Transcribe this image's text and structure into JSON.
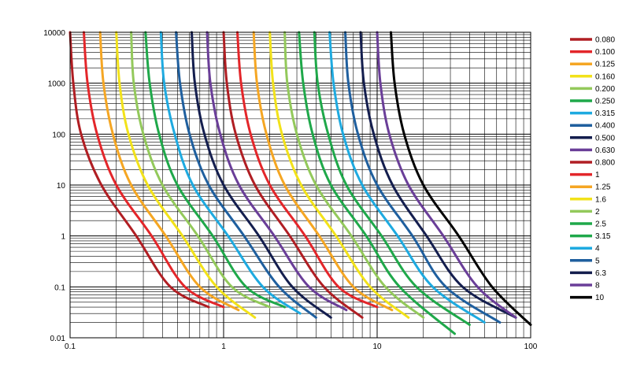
{
  "chart_data": {
    "type": "line",
    "title": "",
    "xlabel": "",
    "ylabel": "",
    "x_scale": "log",
    "y_scale": "log",
    "xlim": [
      0.1,
      100
    ],
    "ylim": [
      0.01,
      10000
    ],
    "grid": true,
    "legend_position": "right",
    "x_ticks": [
      "0.1",
      "1",
      "10",
      "100"
    ],
    "y_ticks": [
      "0.01",
      "0.1",
      "1",
      "10",
      "100",
      "1000",
      "10000"
    ],
    "series": [
      {
        "name": "0.080",
        "color": "#B01E23",
        "points": [
          [
            0.1,
            10000
          ],
          [
            0.105,
            1000
          ],
          [
            0.118,
            100
          ],
          [
            0.16,
            10
          ],
          [
            0.27,
            1
          ],
          [
            0.45,
            0.1
          ],
          [
            0.8,
            0.04
          ]
        ]
      },
      {
        "name": "0.100",
        "color": "#E3262A",
        "points": [
          [
            0.123,
            10000
          ],
          [
            0.13,
            1000
          ],
          [
            0.15,
            100
          ],
          [
            0.2,
            10
          ],
          [
            0.34,
            1
          ],
          [
            0.56,
            0.1
          ],
          [
            1.0,
            0.04
          ]
        ]
      },
      {
        "name": "0.125",
        "color": "#F5A623",
        "points": [
          [
            0.157,
            10000
          ],
          [
            0.165,
            1000
          ],
          [
            0.19,
            100
          ],
          [
            0.25,
            10
          ],
          [
            0.42,
            1
          ],
          [
            0.7,
            0.1
          ],
          [
            1.25,
            0.035
          ]
        ]
      },
      {
        "name": "0.160",
        "color": "#F2E21A",
        "points": [
          [
            0.2,
            10000
          ],
          [
            0.21,
            1000
          ],
          [
            0.24,
            100
          ],
          [
            0.32,
            10
          ],
          [
            0.54,
            1
          ],
          [
            0.9,
            0.1
          ],
          [
            1.6,
            0.025
          ]
        ]
      },
      {
        "name": "0.200",
        "color": "#93C95B",
        "points": [
          [
            0.25,
            10000
          ],
          [
            0.26,
            1000
          ],
          [
            0.3,
            100
          ],
          [
            0.4,
            10
          ],
          [
            0.68,
            1
          ],
          [
            1.13,
            0.1
          ],
          [
            2.0,
            0.04
          ]
        ]
      },
      {
        "name": "0.250",
        "color": "#1FA84A",
        "points": [
          [
            0.31,
            10000
          ],
          [
            0.33,
            1000
          ],
          [
            0.38,
            100
          ],
          [
            0.5,
            10
          ],
          [
            0.85,
            1
          ],
          [
            1.4,
            0.1
          ],
          [
            2.5,
            0.04
          ]
        ]
      },
      {
        "name": "0.315",
        "color": "#1EAAE0",
        "points": [
          [
            0.39,
            10000
          ],
          [
            0.41,
            1000
          ],
          [
            0.48,
            100
          ],
          [
            0.63,
            10
          ],
          [
            1.07,
            1
          ],
          [
            1.8,
            0.1
          ],
          [
            3.15,
            0.03
          ]
        ]
      },
      {
        "name": "0.400",
        "color": "#1F5F9E",
        "points": [
          [
            0.49,
            10000
          ],
          [
            0.52,
            1000
          ],
          [
            0.6,
            100
          ],
          [
            0.8,
            10
          ],
          [
            1.36,
            1
          ],
          [
            2.3,
            0.1
          ],
          [
            4.0,
            0.025
          ]
        ]
      },
      {
        "name": "0.500",
        "color": "#141E4E",
        "points": [
          [
            0.62,
            10000
          ],
          [
            0.65,
            1000
          ],
          [
            0.75,
            100
          ],
          [
            1.0,
            10
          ],
          [
            1.7,
            1
          ],
          [
            2.8,
            0.1
          ],
          [
            5.0,
            0.025
          ]
        ]
      },
      {
        "name": "0.630",
        "color": "#6A3E98",
        "points": [
          [
            0.78,
            10000
          ],
          [
            0.82,
            1000
          ],
          [
            0.95,
            100
          ],
          [
            1.26,
            10
          ],
          [
            2.14,
            1
          ],
          [
            3.6,
            0.1
          ],
          [
            6.3,
            0.035
          ]
        ]
      },
      {
        "name": "0.800",
        "color": "#B01E23",
        "points": [
          [
            1.0,
            10000
          ],
          [
            1.05,
            1000
          ],
          [
            1.2,
            100
          ],
          [
            1.6,
            10
          ],
          [
            2.7,
            1
          ],
          [
            4.5,
            0.1
          ],
          [
            8.0,
            0.025
          ]
        ]
      },
      {
        "name": "1",
        "color": "#E3262A",
        "points": [
          [
            1.23,
            10000
          ],
          [
            1.3,
            1000
          ],
          [
            1.5,
            100
          ],
          [
            2.0,
            10
          ],
          [
            3.4,
            1
          ],
          [
            5.6,
            0.1
          ],
          [
            10,
            0.04
          ]
        ]
      },
      {
        "name": "1.25",
        "color": "#F5A623",
        "points": [
          [
            1.57,
            10000
          ],
          [
            1.65,
            1000
          ],
          [
            1.9,
            100
          ],
          [
            2.5,
            10
          ],
          [
            4.2,
            1
          ],
          [
            7.0,
            0.1
          ],
          [
            12.5,
            0.035
          ]
        ]
      },
      {
        "name": "1.6",
        "color": "#F2E21A",
        "points": [
          [
            2.0,
            10000
          ],
          [
            2.1,
            1000
          ],
          [
            2.4,
            100
          ],
          [
            3.2,
            10
          ],
          [
            5.4,
            1
          ],
          [
            9.0,
            0.1
          ],
          [
            16,
            0.025
          ]
        ]
      },
      {
        "name": "2",
        "color": "#93C95B",
        "points": [
          [
            2.5,
            10000
          ],
          [
            2.6,
            1000
          ],
          [
            3.0,
            100
          ],
          [
            4.0,
            10
          ],
          [
            6.8,
            1
          ],
          [
            11.3,
            0.1
          ],
          [
            20,
            0.025
          ]
        ]
      },
      {
        "name": "2.5",
        "color": "#1FA84A",
        "points": [
          [
            3.1,
            10000
          ],
          [
            3.3,
            1000
          ],
          [
            3.8,
            100
          ],
          [
            5.0,
            10
          ],
          [
            8.5,
            1
          ],
          [
            14,
            0.1
          ],
          [
            32,
            0.012
          ]
        ]
      },
      {
        "name": "3.15",
        "color": "#1FA84A",
        "points": [
          [
            3.9,
            10000
          ],
          [
            4.1,
            1000
          ],
          [
            4.8,
            100
          ],
          [
            6.3,
            10
          ],
          [
            10.7,
            1
          ],
          [
            18,
            0.1
          ],
          [
            40,
            0.018
          ]
        ]
      },
      {
        "name": "4",
        "color": "#1EAAE0",
        "points": [
          [
            4.9,
            10000
          ],
          [
            5.2,
            1000
          ],
          [
            6.0,
            100
          ],
          [
            8.0,
            10
          ],
          [
            13.6,
            1
          ],
          [
            23,
            0.1
          ],
          [
            50,
            0.02
          ]
        ]
      },
      {
        "name": "5",
        "color": "#1F5F9E",
        "points": [
          [
            6.2,
            10000
          ],
          [
            6.5,
            1000
          ],
          [
            7.5,
            100
          ],
          [
            10,
            10
          ],
          [
            17,
            1
          ],
          [
            28,
            0.1
          ],
          [
            63,
            0.02
          ]
        ]
      },
      {
        "name": "6.3",
        "color": "#141E4E",
        "points": [
          [
            7.8,
            10000
          ],
          [
            8.2,
            1000
          ],
          [
            9.5,
            100
          ],
          [
            12.6,
            10
          ],
          [
            21,
            1
          ],
          [
            36,
            0.1
          ],
          [
            80,
            0.025
          ]
        ]
      },
      {
        "name": "8",
        "color": "#6A3E98",
        "points": [
          [
            10,
            10000
          ],
          [
            10.5,
            1000
          ],
          [
            12,
            100
          ],
          [
            16,
            10
          ],
          [
            27,
            1
          ],
          [
            45,
            0.1
          ],
          [
            80,
            0.025
          ]
        ]
      },
      {
        "name": "10",
        "color": "#000000",
        "points": [
          [
            12.3,
            10000
          ],
          [
            13,
            1000
          ],
          [
            15,
            100
          ],
          [
            20,
            10
          ],
          [
            34,
            1
          ],
          [
            56,
            0.1
          ],
          [
            100,
            0.018
          ]
        ]
      }
    ]
  }
}
